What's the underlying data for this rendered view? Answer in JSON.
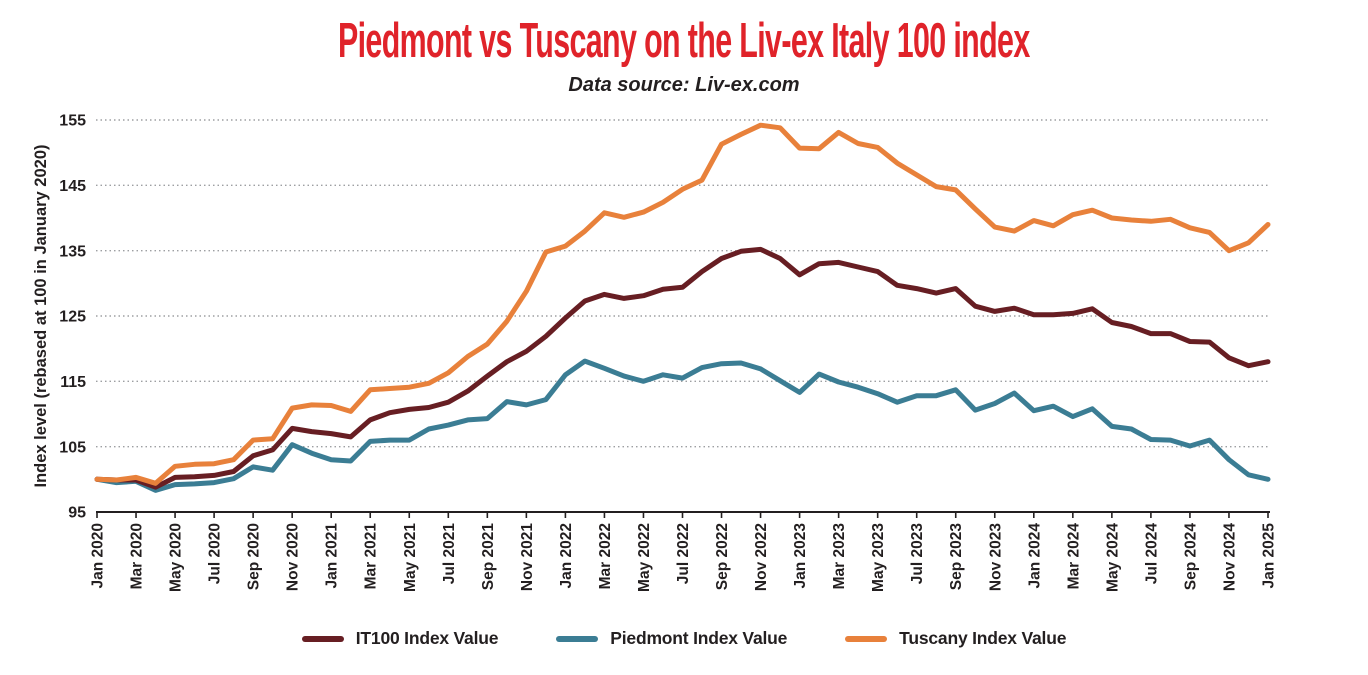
{
  "page": {
    "title": "Piedmont vs Tuscany on the Liv-ex Italy 100 index",
    "subtitle": "Data source: Liv-ex.com",
    "title_color": "#e0232a",
    "text_color": "#231f20",
    "grid_color": "#9d9fa2",
    "background_color": "#ffffff"
  },
  "chart_data": {
    "type": "line",
    "title": "Piedmont vs Tuscany on the Liv-ex Italy 100 index",
    "subtitle": "Data source: Liv-ex.com",
    "xlabel": "",
    "ylabel": "Index level (rebased at 100 in January 2020)",
    "ylim": [
      95,
      155
    ],
    "yticks": [
      95,
      105,
      115,
      125,
      135,
      145,
      155
    ],
    "grid": "horizontal-dotted",
    "legend_position": "bottom",
    "points_are_monthly": true,
    "label_every_n_points": 2,
    "x_tick_labels": [
      "Jan 2020",
      "Mar 2020",
      "May 2020",
      "Jul 2020",
      "Sep 2020",
      "Nov 2020",
      "Jan 2021",
      "Mar 2021",
      "May 2021",
      "Jul 2021",
      "Sep 2021",
      "Nov 2021",
      "Jan 2022",
      "Mar 2022",
      "May 2022",
      "Jul 2022",
      "Sep 2022",
      "Nov 2022",
      "Jan 2023",
      "Mar 2023",
      "May 2023",
      "Jul 2023",
      "Sep 2023",
      "Nov 2023",
      "Jan 2024",
      "Mar 2024",
      "May 2024",
      "Jul 2024",
      "Sep 2024",
      "Nov 2024",
      "Jan 2025"
    ],
    "series": [
      {
        "name": "IT100 Index Value",
        "color": "#671e23",
        "values": [
          100.0,
          99.9,
          99.9,
          98.8,
          100.3,
          100.4,
          100.6,
          101.2,
          103.6,
          104.5,
          107.8,
          107.3,
          107.0,
          106.5,
          109.1,
          110.2,
          110.7,
          111.0,
          111.8,
          113.5,
          115.8,
          118.0,
          119.6,
          121.9,
          124.7,
          127.3,
          128.3,
          127.7,
          128.1,
          129.1,
          129.4,
          131.8,
          133.8,
          134.9,
          135.2,
          133.8,
          131.3,
          133.0,
          133.2,
          132.5,
          131.8,
          129.7,
          129.2,
          128.5,
          129.2,
          126.5,
          125.7,
          126.2,
          125.2,
          125.2,
          125.4,
          126.1,
          124.0,
          123.4,
          122.3,
          122.3,
          121.1,
          121.0,
          118.6,
          117.4,
          118.0
        ]
      },
      {
        "name": "Piedmont Index Value",
        "color": "#3b7d94",
        "values": [
          100.0,
          99.5,
          99.7,
          98.3,
          99.2,
          99.3,
          99.5,
          100.1,
          101.9,
          101.4,
          105.3,
          104.0,
          103.0,
          102.8,
          105.8,
          106.0,
          106.0,
          107.7,
          108.3,
          109.1,
          109.3,
          111.9,
          111.4,
          112.2,
          116.0,
          118.1,
          117.0,
          115.8,
          115.0,
          116.0,
          115.5,
          117.1,
          117.7,
          117.8,
          116.9,
          115.1,
          113.3,
          116.1,
          114.9,
          114.1,
          113.1,
          111.8,
          112.8,
          112.8,
          113.7,
          110.6,
          111.6,
          113.2,
          110.5,
          111.2,
          109.6,
          110.8,
          108.1,
          107.7,
          106.1,
          106.0,
          105.1,
          106.0,
          103.0,
          100.7,
          100.0
        ]
      },
      {
        "name": "Tuscany Index Value",
        "color": "#e8813b",
        "values": [
          100.0,
          99.9,
          100.3,
          99.4,
          102.0,
          102.3,
          102.4,
          103.0,
          106.0,
          106.2,
          110.9,
          111.4,
          111.3,
          110.4,
          113.7,
          113.9,
          114.1,
          114.7,
          116.3,
          118.8,
          120.7,
          124.2,
          128.8,
          134.8,
          135.7,
          138.0,
          140.8,
          140.1,
          140.9,
          142.4,
          144.4,
          145.8,
          151.3,
          152.8,
          154.2,
          153.8,
          150.7,
          150.6,
          153.1,
          151.4,
          150.8,
          148.4,
          146.6,
          144.8,
          144.3,
          141.4,
          138.6,
          138.0,
          139.6,
          138.8,
          140.5,
          141.2,
          140.0,
          139.7,
          139.5,
          139.8,
          138.5,
          137.8,
          135.0,
          136.2,
          139.0
        ]
      }
    ]
  }
}
